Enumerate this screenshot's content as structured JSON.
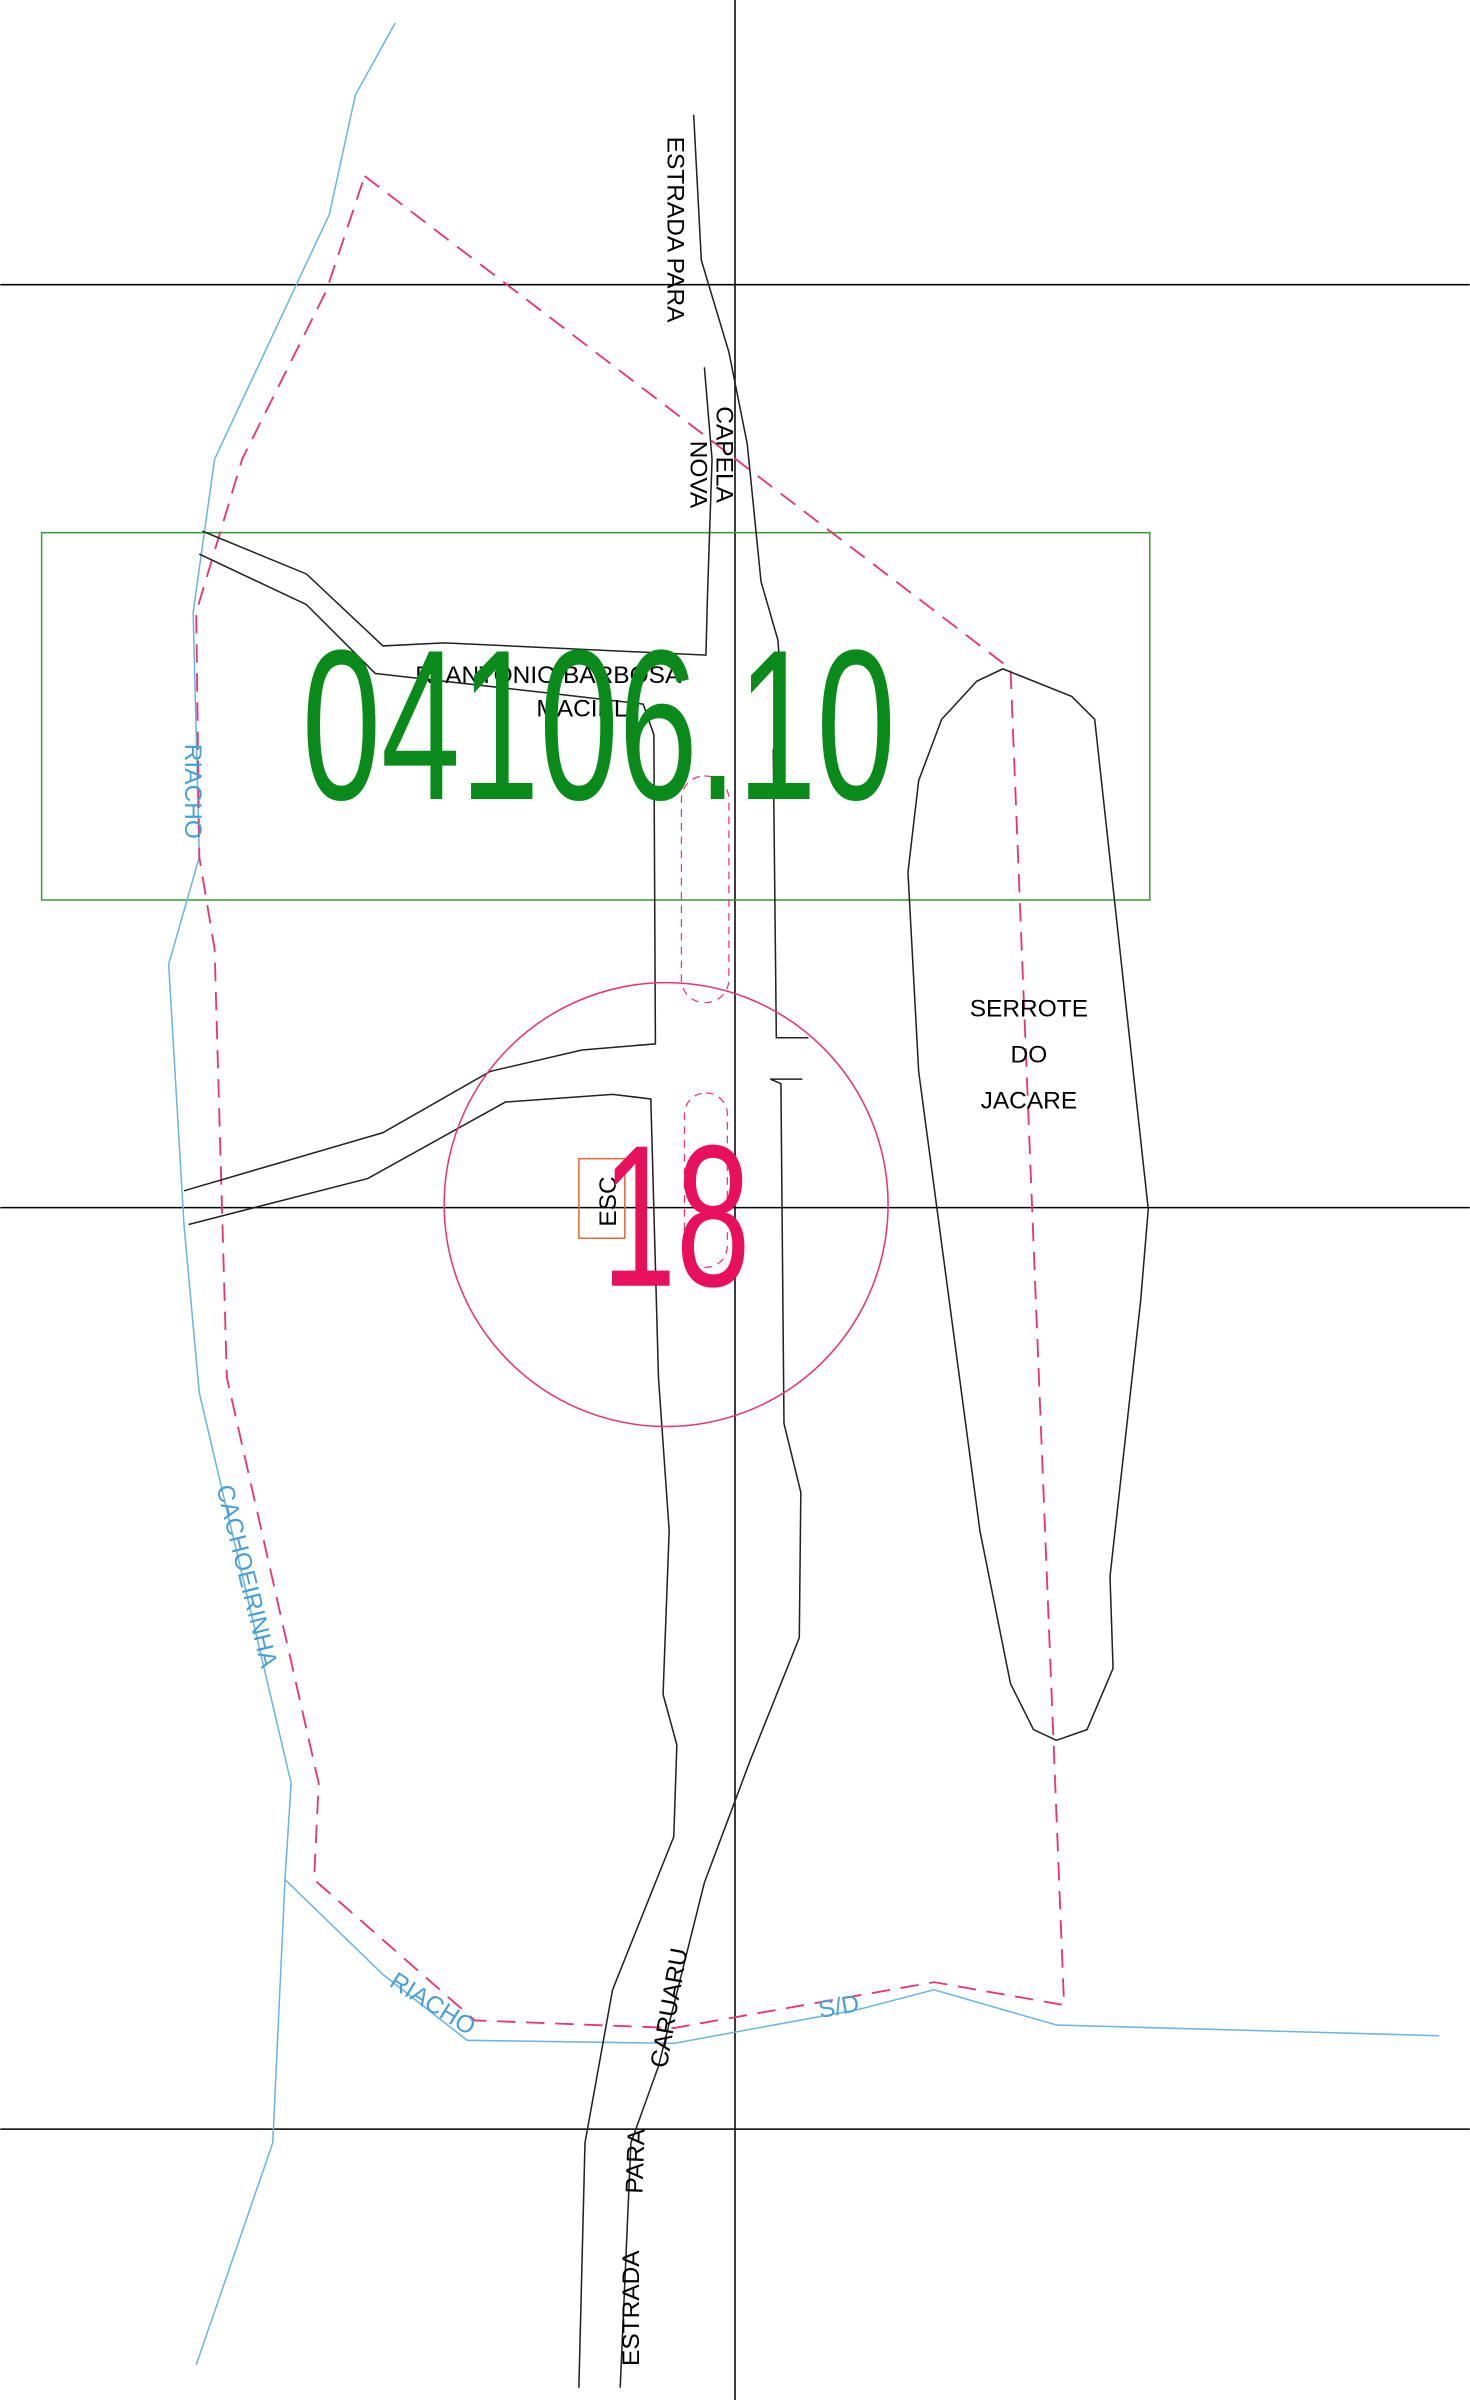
{
  "map": {
    "sector_code": "04106.10",
    "sector_number": "18",
    "north_road": {
      "line1": "ESTRADA PARA",
      "line2": "CAPELA",
      "line3": "NOVA"
    },
    "street": {
      "line1": "R. ANTONIO BARBOSA",
      "line2": "MACIEL"
    },
    "hill": {
      "line1": "SERROTE",
      "line2": "DO",
      "line3": "JACARE"
    },
    "school": "ESC",
    "river_west": {
      "part1": "RIACHO",
      "part2": "CACHOEIRINHA"
    },
    "river_south": {
      "part1": "RIACHO",
      "part2": "S/D"
    },
    "south_road": {
      "part1": "ESTRADA",
      "part2": "PARA",
      "part3": "CARUARU"
    }
  }
}
